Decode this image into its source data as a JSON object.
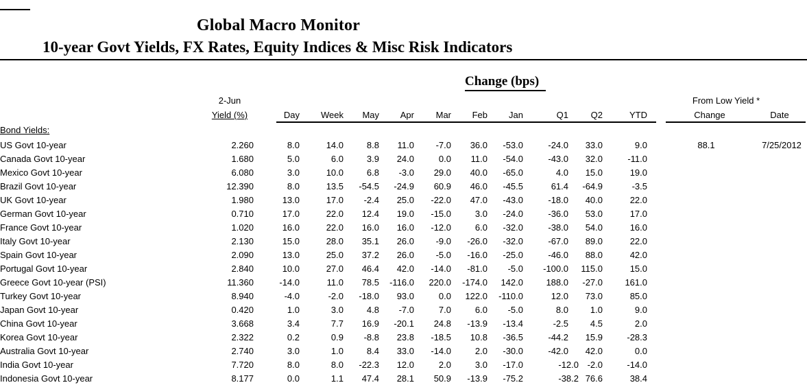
{
  "title": "Global Macro Monitor",
  "subtitle": "10-year Govt Yields, FX Rates, Equity Indices & Misc Risk Indicators",
  "colors": {
    "background": "#ffffff",
    "text": "#000000",
    "rule": "#000000"
  },
  "table": {
    "date_label": "2-Jun",
    "yield_label": "Yield (%)",
    "change_group_label": "Change (bps)",
    "from_low_group_label": "From Low Yield  *",
    "change_cols": [
      "Day",
      "Week",
      "May",
      "Apr",
      "Mar",
      "Feb",
      "Jan",
      "Q1",
      "Q2",
      "YTD"
    ],
    "from_low_cols": [
      "Change",
      "Date"
    ],
    "section_label": "Bond Yields:",
    "rows": [
      {
        "name": "US Govt 10-year",
        "yield": "2.260",
        "changes": [
          "8.0",
          "14.0",
          "8.8",
          "11.0",
          "-7.0",
          "36.0",
          "-53.0",
          "-24.0",
          "33.0",
          "9.0"
        ],
        "from_low_change": "88.1",
        "from_low_date": "7/25/2012"
      },
      {
        "name": "Canada Govt 10-year",
        "yield": "1.680",
        "changes": [
          "5.0",
          "6.0",
          "3.9",
          "24.0",
          "0.0",
          "11.0",
          "-54.0",
          "-43.0",
          "32.0",
          "-11.0"
        ]
      },
      {
        "name": "Mexico Govt 10-year",
        "yield": "6.080",
        "changes": [
          "3.0",
          "10.0",
          "6.8",
          "-3.0",
          "29.0",
          "40.0",
          "-65.0",
          "4.0",
          "15.0",
          "19.0"
        ]
      },
      {
        "name": "Brazil Govt 10-year",
        "yield": "12.390",
        "changes": [
          "8.0",
          "13.5",
          "-54.5",
          "-24.9",
          "60.9",
          "46.0",
          "-45.5",
          "61.4",
          "-64.9",
          "-3.5"
        ]
      },
      {
        "name": "UK Govt 10-year",
        "yield": "1.980",
        "changes": [
          "13.0",
          "17.0",
          "-2.4",
          "25.0",
          "-22.0",
          "47.0",
          "-43.0",
          "-18.0",
          "40.0",
          "22.0"
        ]
      },
      {
        "name": "German Govt 10-year",
        "yield": "0.710",
        "changes": [
          "17.0",
          "22.0",
          "12.4",
          "19.0",
          "-15.0",
          "3.0",
          "-24.0",
          "-36.0",
          "53.0",
          "17.0"
        ]
      },
      {
        "name": "France Govt 10-year",
        "yield": "1.020",
        "changes": [
          "16.0",
          "22.0",
          "16.0",
          "16.0",
          "-12.0",
          "6.0",
          "-32.0",
          "-38.0",
          "54.0",
          "16.0"
        ]
      },
      {
        "name": "Italy Govt 10-year",
        "yield": "2.130",
        "changes": [
          "15.0",
          "28.0",
          "35.1",
          "26.0",
          "-9.0",
          "-26.0",
          "-32.0",
          "-67.0",
          "89.0",
          "22.0"
        ]
      },
      {
        "name": "Spain Govt 10-year",
        "yield": "2.090",
        "changes": [
          "13.0",
          "25.0",
          "37.2",
          "26.0",
          "-5.0",
          "-16.0",
          "-25.0",
          "-46.0",
          "88.0",
          "42.0"
        ]
      },
      {
        "name": "Portugal Govt 10-year",
        "yield": "2.840",
        "changes": [
          "10.0",
          "27.0",
          "46.4",
          "42.0",
          "-14.0",
          "-81.0",
          "-5.0",
          "-100.0",
          "115.0",
          "15.0"
        ]
      },
      {
        "name": "Greece Govt 10-year (PSI)",
        "yield": "11.360",
        "changes": [
          "-14.0",
          "11.0",
          "78.5",
          "-116.0",
          "220.0",
          "-174.0",
          "142.0",
          "188.0",
          "-27.0",
          "161.0"
        ]
      },
      {
        "name": "Turkey Govt 10-year",
        "yield": "8.940",
        "changes": [
          "-4.0",
          "-2.0",
          "-18.0",
          "93.0",
          "0.0",
          "122.0",
          "-110.0",
          "12.0",
          "73.0",
          "85.0"
        ]
      },
      {
        "name": "Japan Govt 10-year",
        "yield": "0.420",
        "changes": [
          "1.0",
          "3.0",
          "4.8",
          "-7.0",
          "7.0",
          "6.0",
          "-5.0",
          "8.0",
          "1.0",
          "9.0"
        ]
      },
      {
        "name": "China Govt 10-year",
        "yield": "3.668",
        "changes": [
          "3.4",
          "7.7",
          "16.9",
          "-20.1",
          "24.8",
          "-13.9",
          "-13.4",
          "-2.5",
          "4.5",
          "2.0"
        ]
      },
      {
        "name": "Korea Govt 10-year",
        "yield": "2.322",
        "changes": [
          "0.2",
          "0.9",
          "-8.8",
          "23.8",
          "-18.5",
          "10.8",
          "-36.5",
          "-44.2",
          "15.9",
          "-28.3"
        ]
      },
      {
        "name": "Australia Govt 10-year",
        "yield": "2.740",
        "changes": [
          "3.0",
          "1.0",
          "8.4",
          "33.0",
          "-14.0",
          "2.0",
          "-30.0",
          "-42.0",
          "42.0",
          "0.0"
        ]
      },
      {
        "name": "India Govt 10-year",
        "yield": "7.720",
        "changes": [
          "8.0",
          "8.0",
          "-22.3",
          "12.0",
          "2.0",
          "3.0",
          "-17.0",
          "-12.0",
          "-2.0",
          "-14.0"
        ],
        "q1_indent": true
      },
      {
        "name": "Indonesia Govt 10-year",
        "yield": "8.177",
        "changes": [
          "0.0",
          "1.1",
          "47.4",
          "28.1",
          "50.9",
          "-13.9",
          "-75.2",
          "-38.2",
          "76.6",
          "38.4"
        ],
        "q1_indent": true
      }
    ]
  }
}
